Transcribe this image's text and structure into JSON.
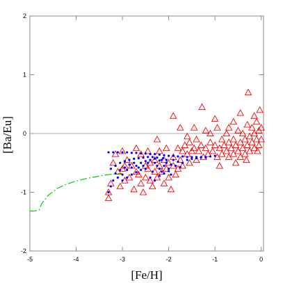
{
  "chart_data": {
    "type": "scatter",
    "title": "",
    "xlabel": "[Fe/H]",
    "ylabel": "[Ba/Eu]",
    "xlim": [
      -5,
      0.05
    ],
    "ylim": [
      -2,
      2
    ],
    "x_ticks": [
      -5,
      -4,
      -3,
      -2,
      -1,
      0
    ],
    "y_ticks": [
      -2,
      -1,
      0,
      1,
      2
    ],
    "x_tick_labels": [
      "-5",
      "-4",
      "-3",
      "-2",
      "-1",
      "0"
    ],
    "y_tick_labels": [
      "-2",
      "-1",
      "0",
      "1",
      "2"
    ],
    "reference_lines": [
      {
        "axis": "y",
        "value": 0
      }
    ],
    "grid": false,
    "colors": {
      "observed": "#ff0000",
      "model_points": "#0000ff",
      "model_curve": "#00cc00",
      "reference_line": "#888888",
      "frame": "#888888"
    },
    "series": [
      {
        "marker": "triangle-open",
        "points": [
          [
            -3.3,
            -1.1
          ],
          [
            -3.3,
            -1.0
          ],
          [
            -3.25,
            -0.85
          ],
          [
            -3.2,
            -0.5
          ],
          [
            -3.15,
            -0.35
          ],
          [
            -3.1,
            -0.65
          ],
          [
            -3.05,
            -0.9
          ],
          [
            -3.0,
            -0.6
          ],
          [
            -2.95,
            -0.55
          ],
          [
            -2.95,
            -0.8
          ],
          [
            -2.9,
            -0.45
          ],
          [
            -2.85,
            -0.75
          ],
          [
            -2.8,
            -0.55
          ],
          [
            -2.75,
            -0.95
          ],
          [
            -2.7,
            -0.65
          ],
          [
            -2.65,
            -0.7
          ],
          [
            -2.6,
            -0.35
          ],
          [
            -2.6,
            -0.85
          ],
          [
            -2.55,
            -1.0
          ],
          [
            -2.5,
            -0.55
          ],
          [
            -2.5,
            -0.75
          ],
          [
            -2.45,
            -0.6
          ],
          [
            -2.4,
            -0.5
          ],
          [
            -2.4,
            -0.8
          ],
          [
            -2.35,
            -0.9
          ],
          [
            -2.3,
            -0.65
          ],
          [
            -2.3,
            -0.45
          ],
          [
            -2.25,
            -0.75
          ],
          [
            -2.2,
            -0.55
          ],
          [
            -2.2,
            -0.3
          ],
          [
            -2.15,
            -0.65
          ],
          [
            -2.1,
            -0.85
          ],
          [
            -2.1,
            -0.45
          ],
          [
            -2.05,
            -0.6
          ],
          [
            -2.0,
            -0.75
          ],
          [
            -2.0,
            -0.5
          ],
          [
            -1.95,
            -0.95
          ],
          [
            -1.9,
            -0.55
          ],
          [
            -1.9,
            -0.4
          ],
          [
            -1.85,
            -0.7
          ],
          [
            -1.8,
            -0.25
          ],
          [
            -1.8,
            -0.6
          ],
          [
            -1.75,
            -0.45
          ],
          [
            -1.7,
            -0.3
          ],
          [
            -1.7,
            -0.55
          ],
          [
            -1.65,
            -0.2
          ],
          [
            -1.6,
            -0.35
          ],
          [
            -1.55,
            -0.15
          ],
          [
            -1.55,
            -0.5
          ],
          [
            -1.5,
            -0.3
          ],
          [
            -1.45,
            -0.25
          ],
          [
            -1.4,
            -0.45
          ],
          [
            -1.4,
            -0.1
          ],
          [
            -1.35,
            -0.3
          ],
          [
            -1.3,
            -0.2
          ],
          [
            -1.25,
            -0.4
          ],
          [
            -1.2,
            -0.25
          ],
          [
            -1.2,
            0.05
          ],
          [
            -1.15,
            -0.35
          ],
          [
            -1.1,
            -0.15
          ],
          [
            -1.05,
            -0.3
          ],
          [
            -1.0,
            -0.2
          ],
          [
            -0.95,
            -0.4
          ],
          [
            -0.95,
            0.1
          ],
          [
            -0.9,
            -0.25
          ],
          [
            -0.85,
            -0.1
          ],
          [
            -0.85,
            -0.35
          ],
          [
            -0.8,
            -0.2
          ],
          [
            -0.75,
            -0.3
          ],
          [
            -0.75,
            0.0
          ],
          [
            -0.7,
            -0.15
          ],
          [
            -0.7,
            -0.4
          ],
          [
            -0.65,
            -0.25
          ],
          [
            -0.6,
            -0.1
          ],
          [
            -0.6,
            -0.35
          ],
          [
            -0.55,
            -0.2
          ],
          [
            -0.5,
            -0.3
          ],
          [
            -0.5,
            0.05
          ],
          [
            -0.45,
            -0.15
          ],
          [
            -0.45,
            -0.4
          ],
          [
            -0.4,
            -0.25
          ],
          [
            -0.4,
            0.0
          ],
          [
            -0.35,
            -0.1
          ],
          [
            -0.35,
            -0.35
          ],
          [
            -0.3,
            -0.2
          ],
          [
            -0.3,
            0.15
          ],
          [
            -0.25,
            -0.3
          ],
          [
            -0.25,
            -0.05
          ],
          [
            -0.2,
            -0.15
          ],
          [
            -0.2,
            0.1
          ],
          [
            -0.15,
            -0.25
          ],
          [
            -0.15,
            0.0
          ],
          [
            -0.1,
            -0.1
          ],
          [
            -0.1,
            0.2
          ],
          [
            -0.05,
            -0.2
          ],
          [
            -0.05,
            0.05
          ],
          [
            0.0,
            -0.1
          ],
          [
            0.0,
            0.1
          ],
          [
            -0.28,
            0.7
          ],
          [
            -0.03,
            0.4
          ],
          [
            -1.28,
            0.45
          ],
          [
            -1.9,
            0.3
          ],
          [
            -2.7,
            -0.25
          ],
          [
            -1.0,
            0.25
          ],
          [
            -0.6,
            0.2
          ],
          [
            -0.45,
            0.35
          ],
          [
            -0.15,
            0.3
          ],
          [
            -0.08,
            -0.3
          ],
          [
            -0.55,
            -0.5
          ],
          [
            -0.9,
            -0.55
          ],
          [
            -1.6,
            -0.05
          ],
          [
            -1.45,
            0.1
          ],
          [
            -2.45,
            -0.3
          ],
          [
            -2.05,
            -0.25
          ],
          [
            -3.0,
            -0.3
          ],
          [
            -0.7,
            0.1
          ],
          [
            -0.32,
            -0.45
          ],
          [
            -1.75,
            0.1
          ],
          [
            -2.25,
            -0.1
          ],
          [
            -1.1,
            0.0
          ]
        ]
      },
      {
        "marker": "dot",
        "points": [
          [
            -3.3,
            -0.32
          ],
          [
            -3.2,
            -0.32
          ],
          [
            -3.1,
            -0.32
          ],
          [
            -3.0,
            -0.32
          ],
          [
            -2.9,
            -0.32
          ],
          [
            -2.8,
            -0.33
          ],
          [
            -2.7,
            -0.33
          ],
          [
            -2.6,
            -0.34
          ],
          [
            -2.5,
            -0.34
          ],
          [
            -2.4,
            -0.35
          ],
          [
            -2.3,
            -0.35
          ],
          [
            -2.2,
            -0.36
          ],
          [
            -2.1,
            -0.37
          ],
          [
            -2.0,
            -0.38
          ],
          [
            -1.9,
            -0.38
          ],
          [
            -1.8,
            -0.39
          ],
          [
            -1.7,
            -0.39
          ],
          [
            -1.6,
            -0.4
          ],
          [
            -1.5,
            -0.4
          ],
          [
            -1.4,
            -0.4
          ],
          [
            -1.3,
            -0.41
          ],
          [
            -1.2,
            -0.41
          ],
          [
            -3.3,
            -1.0
          ],
          [
            -3.25,
            -0.9
          ],
          [
            -3.2,
            -0.8
          ],
          [
            -3.1,
            -0.75
          ],
          [
            -3.0,
            -0.7
          ],
          [
            -2.9,
            -0.62
          ],
          [
            -2.8,
            -0.58
          ],
          [
            -2.7,
            -0.55
          ],
          [
            -2.6,
            -0.5
          ],
          [
            -2.5,
            -0.47
          ],
          [
            -2.4,
            -0.45
          ],
          [
            -2.3,
            -0.43
          ],
          [
            -3.25,
            -0.6
          ],
          [
            -3.15,
            -0.55
          ],
          [
            -3.05,
            -0.5
          ],
          [
            -2.95,
            -0.47
          ],
          [
            -2.85,
            -0.45
          ],
          [
            -2.75,
            -0.43
          ],
          [
            -2.65,
            -0.42
          ],
          [
            -2.55,
            -0.41
          ],
          [
            -2.45,
            -0.4
          ],
          [
            -2.35,
            -0.4
          ],
          [
            -2.25,
            -0.41
          ],
          [
            -2.15,
            -0.45
          ],
          [
            -2.05,
            -0.5
          ],
          [
            -1.95,
            -0.53
          ],
          [
            -1.85,
            -0.55
          ],
          [
            -1.75,
            -0.57
          ],
          [
            -2.3,
            -0.5
          ],
          [
            -2.25,
            -0.55
          ],
          [
            -2.2,
            -0.6
          ],
          [
            -2.15,
            -0.65
          ],
          [
            -2.1,
            -0.55
          ],
          [
            -2.05,
            -0.45
          ],
          [
            -2.0,
            -0.6
          ],
          [
            -1.95,
            -0.7
          ],
          [
            -2.35,
            -0.65
          ],
          [
            -2.4,
            -0.75
          ],
          [
            -2.3,
            -0.8
          ],
          [
            -2.2,
            -0.72
          ],
          [
            -2.1,
            -0.68
          ],
          [
            -2.0,
            -0.64
          ],
          [
            -2.5,
            -0.6
          ],
          [
            -2.6,
            -0.62
          ],
          [
            -2.7,
            -0.66
          ],
          [
            -2.8,
            -0.7
          ],
          [
            -2.9,
            -0.75
          ],
          [
            -3.0,
            -0.8
          ],
          [
            -2.45,
            -0.5
          ],
          [
            -2.55,
            -0.55
          ],
          [
            -2.65,
            -0.58
          ],
          [
            -1.9,
            -0.45
          ],
          [
            -1.8,
            -0.48
          ],
          [
            -1.7,
            -0.5
          ],
          [
            -1.6,
            -0.45
          ],
          [
            -1.5,
            -0.43
          ],
          [
            -1.4,
            -0.42
          ],
          [
            -1.3,
            -0.4
          ],
          [
            -1.2,
            -0.4
          ],
          [
            -1.1,
            -0.39
          ],
          [
            -1.0,
            -0.38
          ],
          [
            -2.75,
            -0.5
          ],
          [
            -2.85,
            -0.53
          ],
          [
            -2.95,
            -0.58
          ],
          [
            -3.05,
            -0.62
          ],
          [
            -3.15,
            -0.68
          ],
          [
            -2.2,
            -0.46
          ],
          [
            -2.12,
            -0.42
          ]
        ]
      },
      {
        "marker": "dashed-line",
        "points": [
          [
            -5.0,
            -1.32
          ],
          [
            -4.9,
            -1.32
          ],
          [
            -4.8,
            -1.3
          ],
          [
            -4.75,
            -1.2
          ],
          [
            -4.6,
            -1.05
          ],
          [
            -4.4,
            -0.93
          ],
          [
            -4.2,
            -0.86
          ],
          [
            -4.0,
            -0.81
          ],
          [
            -3.8,
            -0.77
          ],
          [
            -3.6,
            -0.74
          ],
          [
            -3.4,
            -0.71
          ],
          [
            -3.2,
            -0.69
          ],
          [
            -3.0,
            -0.68
          ]
        ]
      }
    ]
  }
}
